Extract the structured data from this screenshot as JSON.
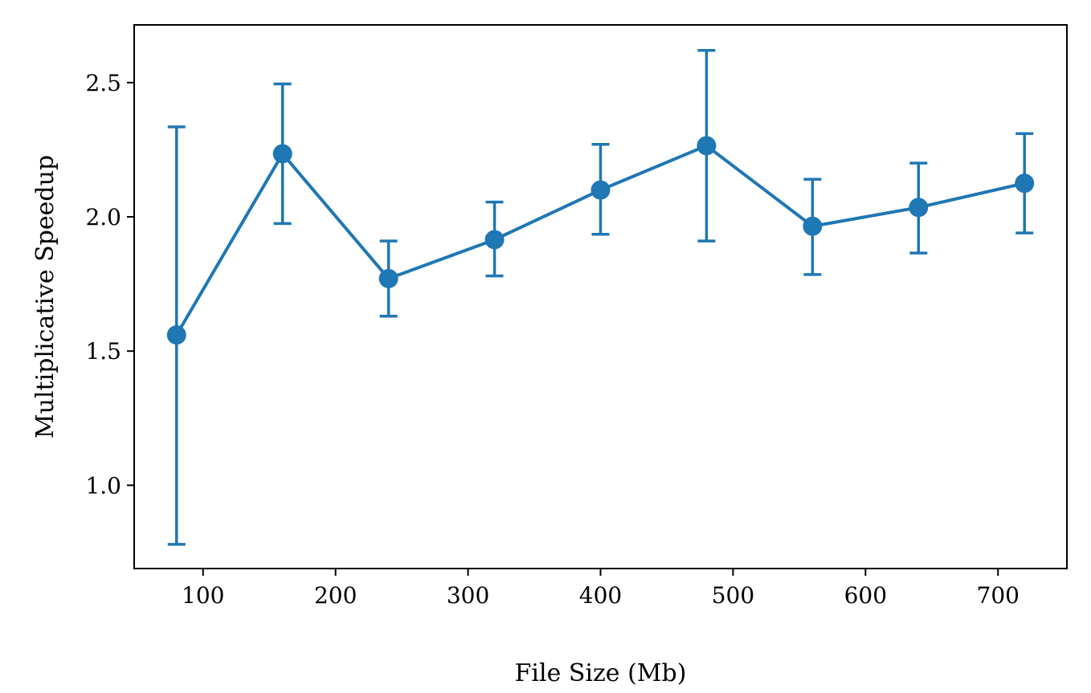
{
  "chart_data": {
    "type": "line",
    "title": "",
    "xlabel": "File Size (Mb)",
    "ylabel": "Multiplicative Speedup",
    "xlim": [
      48,
      752
    ],
    "ylim": [
      0.69,
      2.715
    ],
    "xticks": [
      100,
      200,
      300,
      400,
      500,
      600,
      700
    ],
    "yticks": [
      1.0,
      1.5,
      2.0,
      2.5
    ],
    "xtick_labels": [
      "100",
      "200",
      "300",
      "400",
      "500",
      "600",
      "700"
    ],
    "ytick_labels": [
      "1.0",
      "1.5",
      "2.0",
      "2.5"
    ],
    "grid": false,
    "legend": "none",
    "series": [
      {
        "color": "#1f77b4",
        "x": [
          80,
          160,
          240,
          320,
          400,
          480,
          560,
          640,
          720
        ],
        "y": [
          1.56,
          2.235,
          1.77,
          1.915,
          2.1,
          2.265,
          1.965,
          2.035,
          2.125
        ],
        "err_low": [
          0.78,
          1.975,
          1.63,
          1.78,
          1.935,
          1.91,
          1.785,
          1.865,
          1.94
        ],
        "err_high": [
          2.335,
          2.495,
          1.91,
          2.055,
          2.27,
          2.62,
          2.14,
          2.2,
          2.31
        ]
      }
    ]
  }
}
